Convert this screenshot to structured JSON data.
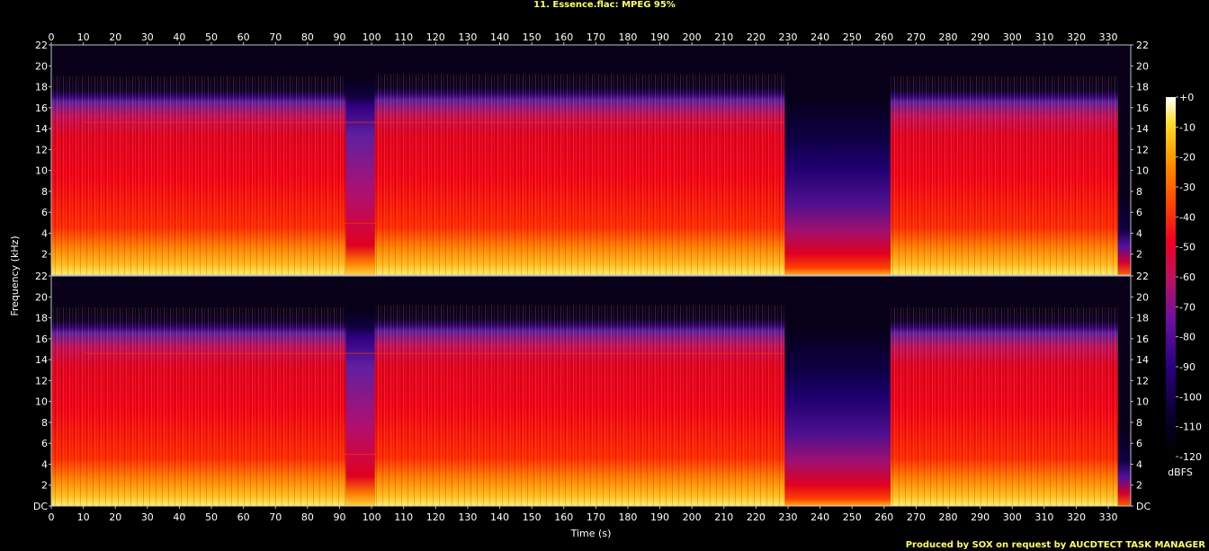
{
  "title": "11. Essence.flac: MPEG 95%",
  "credit": "Produced by SOX on request by AUCDTECT TASK MANAGER",
  "chart_data": {
    "type": "heatmap",
    "title": "11. Essence.flac: MPEG 95%",
    "xlabel": "Time (s)",
    "ylabel": "Frequency (kHz)",
    "colorbar_label": "dBFS",
    "xlim": [
      0,
      337
    ],
    "ylim": [
      0,
      22
    ],
    "x_ticks": [
      "0",
      "10",
      "20",
      "30",
      "40",
      "50",
      "60",
      "70",
      "80",
      "90",
      "100",
      "110",
      "120",
      "130",
      "140",
      "150",
      "160",
      "170",
      "180",
      "190",
      "200",
      "210",
      "220",
      "230",
      "240",
      "250",
      "260",
      "270",
      "280",
      "290",
      "300",
      "310",
      "320",
      "330"
    ],
    "y_ticks": [
      "DC",
      "2",
      "4",
      "6",
      "8",
      "10",
      "12",
      "14",
      "16",
      "18",
      "20",
      "22"
    ],
    "colorbar_ticks": [
      "+0",
      "-10",
      "-20",
      "-30",
      "-40",
      "-50",
      "-60",
      "-70",
      "-80",
      "-90",
      "-100",
      "-110",
      "-120"
    ],
    "colorbar_range": [
      -120,
      0
    ],
    "channels": 2,
    "segments": [
      {
        "t0": 0,
        "t1": 92,
        "cutoff_khz": 19,
        "level": "loud"
      },
      {
        "t0": 92,
        "t1": 101,
        "cutoff_khz": 19,
        "level": "medium"
      },
      {
        "t0": 101,
        "t1": 229,
        "cutoff_khz": 19.2,
        "level": "loud"
      },
      {
        "t0": 229,
        "t1": 262,
        "cutoff_khz": 17,
        "level": "quiet"
      },
      {
        "t0": 262,
        "t1": 333,
        "cutoff_khz": 19,
        "level": "loud"
      },
      {
        "t0": 333,
        "t1": 337,
        "cutoff_khz": 8,
        "level": "fade"
      }
    ]
  }
}
